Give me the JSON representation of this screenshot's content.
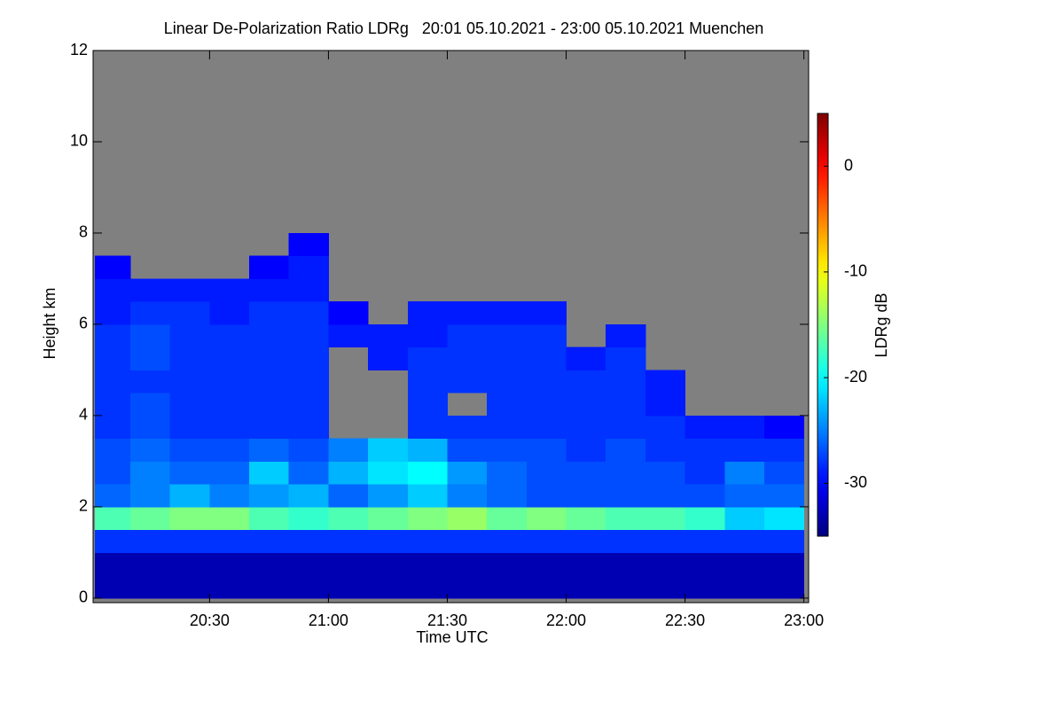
{
  "chart_data": {
    "type": "heatmap",
    "title": "Linear De-Polarization Ratio LDRg   20:01 05.10.2021 - 23:00 05.10.2021 Muenchen",
    "x_label": "Time UTC",
    "y_label": "Height km",
    "colorbar_label": "LDRg dB",
    "colormap": "jet",
    "missing_color": "#808080",
    "xlim": [
      20.01,
      23.02
    ],
    "xticks": [
      {
        "value": 20.5,
        "label": "20:30"
      },
      {
        "value": 21,
        "label": "21:00"
      },
      {
        "value": 21.5,
        "label": "21:30"
      },
      {
        "value": 22,
        "label": "22:00"
      },
      {
        "value": 22.5,
        "label": "22:30"
      },
      {
        "value": 23,
        "label": "23:00"
      }
    ],
    "ylim": [
      -0.1,
      12
    ],
    "yticks": [
      0,
      2,
      4,
      6,
      8,
      10,
      12
    ],
    "zlim": [
      -35,
      5
    ],
    "zticks": [
      0,
      -10,
      -20,
      -30
    ],
    "x_bins": [
      20.0167,
      20.1667,
      20.3333,
      20.5,
      20.6667,
      20.8333,
      21,
      21.1667,
      21.3333,
      21.5,
      21.6667,
      21.8333,
      22,
      22.1667,
      22.3333,
      22.5,
      22.6667,
      22.8333,
      23
    ],
    "y_bins": [
      0,
      0.5,
      1,
      1.5,
      2,
      2.5,
      3,
      3.5,
      4,
      4.5,
      5,
      5.5,
      6,
      6.5,
      7,
      7.5,
      8,
      8.5,
      9,
      9.5,
      10,
      10.5,
      11,
      11.5,
      12
    ],
    "z": [
      [
        -33,
        -33,
        -33,
        -33,
        -33,
        -33,
        -33,
        -33,
        -33,
        -33,
        -33,
        -33,
        -33,
        -33,
        -33,
        -33,
        -33,
        -33
      ],
      [
        -33,
        -33,
        -33,
        -33,
        -33,
        -33,
        -33,
        -33,
        -33,
        -33,
        -33,
        -33,
        -33,
        -33,
        -33,
        -33,
        -33,
        -33
      ],
      [
        -28,
        -28,
        -28,
        -28,
        -28,
        -28,
        -28,
        -28,
        -28,
        -28,
        -28,
        -28,
        -28,
        -28,
        -28,
        -28,
        -28,
        -28
      ],
      [
        -17,
        -16,
        -15,
        -15,
        -17,
        -18,
        -17,
        -16,
        -15,
        -14,
        -16,
        -15,
        -16,
        -17,
        -17,
        -18,
        -22,
        -21
      ],
      [
        -26,
        -25,
        -23,
        -25,
        -24,
        -23,
        -26,
        -24,
        -22,
        -25,
        -26,
        -27,
        -27,
        -27,
        -27,
        -27,
        -26,
        -26
      ],
      [
        -27,
        -25,
        -26,
        -26,
        -22,
        -26,
        -23,
        -21,
        -20,
        -24,
        -26,
        -27,
        -27,
        -27,
        -27,
        -28,
        -25,
        -27
      ],
      [
        -27,
        -26,
        -27,
        -27,
        -26,
        -27,
        -25,
        -22,
        -23,
        -27,
        -27,
        -27,
        -28,
        -27,
        -28,
        -28,
        -28,
        -28
      ],
      [
        -28,
        -27,
        -28,
        -28,
        -28,
        -28,
        null,
        null,
        -28,
        -28,
        -28,
        -28,
        -28,
        -28,
        -28,
        -29,
        -29,
        -30
      ],
      [
        -28,
        -27,
        -28,
        -28,
        -28,
        -28,
        null,
        null,
        -28,
        null,
        -28,
        -28,
        -28,
        -28,
        -29,
        null,
        null,
        null
      ],
      [
        -28,
        -28,
        -28,
        -28,
        -28,
        -28,
        null,
        null,
        -28,
        -28,
        -28,
        -28,
        -28,
        -28,
        -29,
        null,
        null,
        null
      ],
      [
        -28,
        -27,
        -28,
        -28,
        -28,
        -28,
        null,
        -29,
        -28,
        -28,
        -28,
        -28,
        -29,
        -28,
        null,
        null,
        null,
        null
      ],
      [
        -28,
        -27,
        -28,
        -28,
        -28,
        -28,
        -29,
        -29,
        -29,
        -28,
        -28,
        -28,
        null,
        -29,
        null,
        null,
        null,
        null
      ],
      [
        -29,
        -28,
        -28,
        -29,
        -28,
        -28,
        -30,
        null,
        -29,
        -29,
        -29,
        -29,
        null,
        null,
        null,
        null,
        null,
        null
      ],
      [
        -29,
        -29,
        -29,
        -29,
        -29,
        -29,
        null,
        null,
        null,
        null,
        null,
        null,
        null,
        null,
        null,
        null,
        null,
        null
      ],
      [
        -30,
        null,
        null,
        null,
        -30,
        -29,
        null,
        null,
        null,
        null,
        null,
        null,
        null,
        null,
        null,
        null,
        null,
        null
      ],
      [
        null,
        null,
        null,
        null,
        null,
        -30,
        null,
        null,
        null,
        null,
        null,
        null,
        null,
        null,
        null,
        null,
        null,
        null
      ],
      [
        null,
        null,
        null,
        null,
        null,
        null,
        null,
        null,
        null,
        null,
        null,
        null,
        null,
        null,
        null,
        null,
        null,
        null
      ],
      [
        null,
        null,
        null,
        null,
        null,
        null,
        null,
        null,
        null,
        null,
        null,
        null,
        null,
        null,
        null,
        null,
        null,
        null
      ],
      [
        null,
        null,
        null,
        null,
        null,
        null,
        null,
        null,
        null,
        null,
        null,
        null,
        null,
        null,
        null,
        null,
        null,
        null
      ],
      [
        null,
        null,
        null,
        null,
        null,
        null,
        null,
        null,
        null,
        null,
        null,
        null,
        null,
        null,
        null,
        null,
        null,
        null
      ],
      [
        null,
        null,
        null,
        null,
        null,
        null,
        null,
        null,
        null,
        null,
        null,
        null,
        null,
        null,
        null,
        null,
        null,
        null
      ],
      [
        null,
        null,
        null,
        null,
        null,
        null,
        null,
        null,
        null,
        null,
        null,
        null,
        null,
        null,
        null,
        null,
        null,
        null
      ],
      [
        null,
        null,
        null,
        null,
        null,
        null,
        null,
        null,
        null,
        null,
        null,
        null,
        null,
        null,
        null,
        null,
        null,
        null
      ],
      [
        null,
        null,
        null,
        null,
        null,
        null,
        null,
        null,
        null,
        null,
        null,
        null,
        null,
        null,
        null,
        null,
        null,
        null
      ]
    ]
  }
}
